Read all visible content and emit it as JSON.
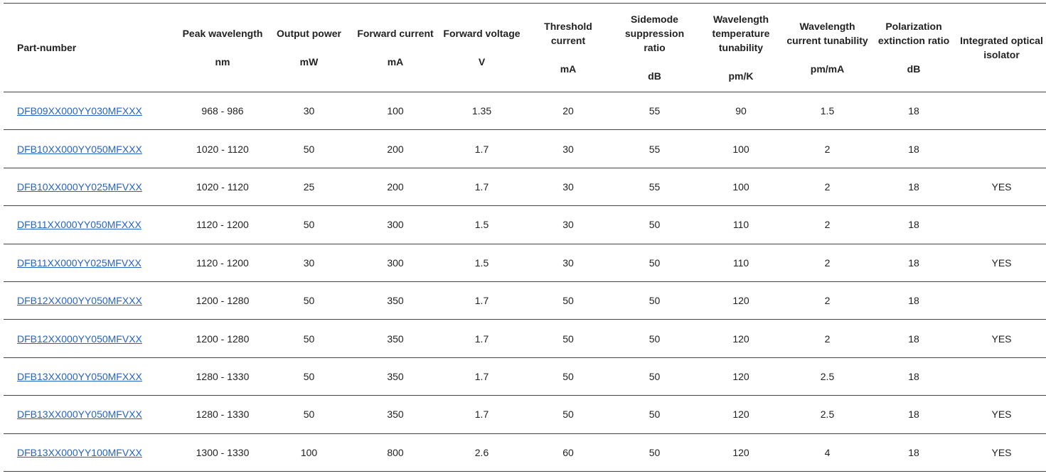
{
  "columns": [
    {
      "name": "Part-number",
      "unit": ""
    },
    {
      "name": "Peak wavelength",
      "unit": "nm"
    },
    {
      "name": "Output power",
      "unit": "mW"
    },
    {
      "name": "Forward current",
      "unit": "mA"
    },
    {
      "name": "Forward voltage",
      "unit": "V"
    },
    {
      "name": "Threshold current",
      "unit": "mA"
    },
    {
      "name": "Sidemode suppression ratio",
      "unit": "dB"
    },
    {
      "name": "Wavelength temperature tunability",
      "unit": "pm/K"
    },
    {
      "name": "Wavelength current tunability",
      "unit": "pm/mA"
    },
    {
      "name": "Polarization extinction ratio",
      "unit": "dB"
    },
    {
      "name": "Integrated optical isolator",
      "unit": ""
    }
  ],
  "rows": [
    [
      "DFB09XX000YY030MFXXX",
      "968 - 986",
      "30",
      "100",
      "1.35",
      "20",
      "55",
      "90",
      "1.5",
      "18",
      ""
    ],
    [
      "DFB10XX000YY050MFXXX",
      "1020 - 1120",
      "50",
      "200",
      "1.7",
      "30",
      "55",
      "100",
      "2",
      "18",
      ""
    ],
    [
      "DFB10XX000YY025MFVXX",
      "1020 - 1120",
      "25",
      "200",
      "1.7",
      "30",
      "55",
      "100",
      "2",
      "18",
      "YES"
    ],
    [
      "DFB11XX000YY050MFXXX",
      "1120 - 1200",
      "50",
      "300",
      "1.5",
      "30",
      "50",
      "110",
      "2",
      "18",
      ""
    ],
    [
      "DFB11XX000YY025MFVXX",
      "1120 - 1200",
      "30",
      "300",
      "1.5",
      "30",
      "50",
      "110",
      "2",
      "18",
      "YES"
    ],
    [
      "DFB12XX000YY050MFXXX",
      "1200 - 1280",
      "50",
      "350",
      "1.7",
      "50",
      "50",
      "120",
      "2",
      "18",
      ""
    ],
    [
      "DFB12XX000YY050MFVXX",
      "1200 - 1280",
      "50",
      "350",
      "1.7",
      "50",
      "50",
      "120",
      "2",
      "18",
      "YES"
    ],
    [
      "DFB13XX000YY050MFXXX",
      "1280 - 1330",
      "50",
      "350",
      "1.7",
      "50",
      "50",
      "120",
      "2.5",
      "18",
      ""
    ],
    [
      "DFB13XX000YY050MFVXX",
      "1280 - 1330",
      "50",
      "350",
      "1.7",
      "50",
      "50",
      "120",
      "2.5",
      "18",
      "YES"
    ],
    [
      "DFB13XX000YY100MFVXX",
      "1300 - 1330",
      "100",
      "800",
      "2.6",
      "60",
      "50",
      "120",
      "4",
      "18",
      "YES"
    ]
  ],
  "colors": {
    "link": "#2563c4",
    "text": "#222222",
    "rule": "#444444"
  }
}
